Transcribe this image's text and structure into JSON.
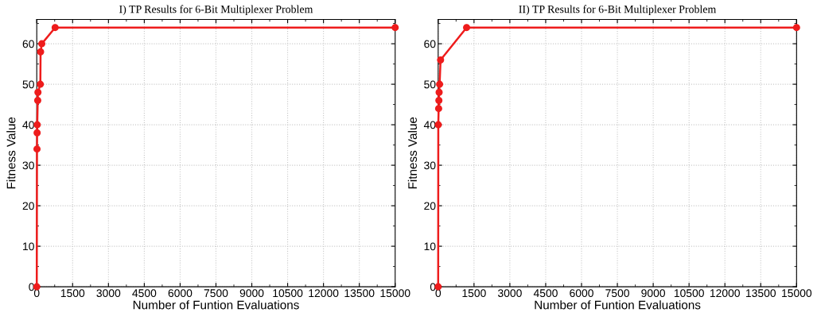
{
  "chart_data": [
    {
      "type": "line",
      "title": "I) TP Results for 6-Bit Multiplexer Problem",
      "xlabel": "Number of Funtion Evaluations",
      "ylabel": "Fitness Value",
      "series": [
        {
          "color": "#ee1c1c",
          "x": [
            0,
            10,
            15,
            20,
            40,
            50,
            150,
            160,
            210,
            770,
            15000
          ],
          "values": [
            0,
            34,
            38,
            40,
            46,
            48,
            50,
            58,
            60,
            64,
            64
          ]
        }
      ],
      "xlim": [
        0,
        15000
      ],
      "xticks": [
        0,
        1500,
        3000,
        4500,
        6000,
        7500,
        9000,
        10500,
        12000,
        13500,
        15000
      ],
      "ylim": [
        0,
        66
      ],
      "yticks": [
        0,
        10,
        20,
        30,
        40,
        50,
        60
      ],
      "grid": true,
      "marker": "circle",
      "line_style": "solid"
    },
    {
      "type": "line",
      "title": "II) TP Results for 6-Bit Multiplexer Problem",
      "xlabel": "Number of Funtion Evaluations",
      "ylabel": "Fitness Value",
      "series": [
        {
          "color": "#ee1c1c",
          "x": [
            0,
            5,
            20,
            30,
            40,
            60,
            100,
            1190,
            15000
          ],
          "values": [
            0,
            40,
            44,
            46,
            48,
            50,
            56,
            64,
            64
          ]
        }
      ],
      "xlim": [
        0,
        15000
      ],
      "xticks": [
        0,
        1500,
        3000,
        4500,
        6000,
        7500,
        9000,
        10500,
        12000,
        13500,
        15000
      ],
      "ylim": [
        0,
        66
      ],
      "yticks": [
        0,
        10,
        20,
        30,
        40,
        50,
        60
      ],
      "grid": true,
      "marker": "circle",
      "line_style": "solid"
    }
  ]
}
